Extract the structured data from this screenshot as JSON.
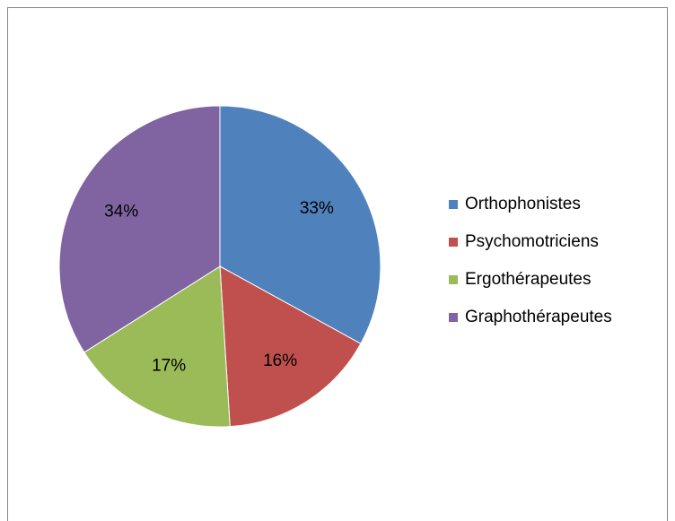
{
  "chart_data": {
    "type": "pie",
    "categories": [
      "Orthophonistes",
      "Psychomotriciens",
      "Ergothérapeutes",
      "Graphothérapeutes"
    ],
    "values": [
      33,
      16,
      17,
      34
    ],
    "value_labels": [
      "33%",
      "16%",
      "17%",
      "34%"
    ],
    "colors": [
      "#4f81bd",
      "#c0504d",
      "#9bbb59",
      "#8064a2"
    ],
    "legend": "right"
  }
}
